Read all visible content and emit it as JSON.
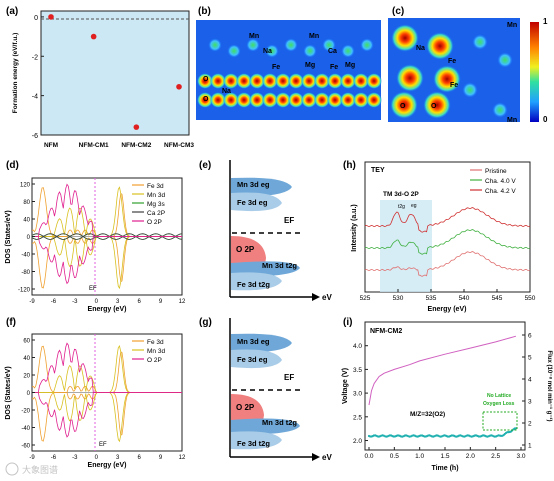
{
  "panels": {
    "a": {
      "label": "(a)",
      "ylabel": "Formation energy (eV/f.u.)",
      "yticks": [
        "0",
        "-2",
        "-4",
        "-6"
      ],
      "categories": [
        "NFM",
        "NFM-CM1",
        "NFM-CM2",
        "NFM-CM3"
      ]
    },
    "b": {
      "label": "(b)",
      "atoms": [
        "Mn",
        "Mn",
        "Na",
        "Ca",
        "Fe",
        "Mg",
        "Fe",
        "Mg",
        "O",
        "Na",
        "O"
      ]
    },
    "c": {
      "label": "(c)",
      "atoms": [
        "Mn",
        "Na",
        "Fe",
        "Fe",
        "O",
        "O",
        "Mn"
      ],
      "cbar": [
        "1",
        "0"
      ]
    },
    "d": {
      "label": "(d)",
      "ylabel": "DOS (States/eV)",
      "xlabel": "Energy (eV)",
      "ef": "EF",
      "yticks": [
        "120",
        "80",
        "40",
        "0",
        "-40",
        "-80",
        "-120"
      ],
      "xticks": [
        "-9",
        "-6",
        "-3",
        "0",
        "3",
        "6",
        "9",
        "12"
      ],
      "legend": [
        "Fe 3d",
        "Mn 3d",
        "Mg 3s",
        "Ca 2P",
        "O 2P"
      ]
    },
    "e": {
      "label": "(e)",
      "band1": "Mn 3d eg",
      "band2": "Fe 3d eg",
      "ef": "EF",
      "o2p": "O 2P",
      "band3": "Mn 3d t2g",
      "band4": "Fe 3d t2g",
      "axis": "eV"
    },
    "f": {
      "label": "(f)",
      "ylabel": "DOS (States/eV)",
      "xlabel": "Energy (eV)",
      "ef": "EF",
      "yticks": [
        "60",
        "40",
        "20",
        "0",
        "-20",
        "-40",
        "-60"
      ],
      "xticks": [
        "-9",
        "-6",
        "-3",
        "0",
        "3",
        "6",
        "9",
        "12"
      ],
      "legend": [
        "Fe 3d",
        "Mn 3d",
        "O 2P"
      ]
    },
    "g": {
      "label": "(g)",
      "band1": "Mn 3d eg",
      "band2": "Fe 3d eg",
      "ef": "EF",
      "o2p": "O 2P",
      "band3": "Mn 3d t2g",
      "band4": "Fe 3d t2g",
      "axis": "eV"
    },
    "h": {
      "label": "(h)",
      "tag": "TEY",
      "ylabel": "Intensity (a.u.)",
      "xlabel": "Energy (eV)",
      "xticks": [
        "525",
        "530",
        "535",
        "540",
        "545",
        "550"
      ],
      "region": "TM 3d-O 2P",
      "t2g": "t2g",
      "eg": "eg",
      "legend": [
        "Pristine",
        "Cha. 4.0 V",
        "Cha. 4.2 V"
      ]
    },
    "i": {
      "label": "(i)",
      "tag": "NFM-CM2",
      "ylabel": "Voltage (V)",
      "y2label": "Flux (10⁻⁸ mol min⁻¹ g⁻¹)",
      "xlabel": "Time (h)",
      "yticks": [
        "2.0",
        "2.5",
        "3.0",
        "3.5",
        "4.0"
      ],
      "y2ticks": [
        "1",
        "2",
        "3",
        "4",
        "5",
        "6"
      ],
      "xticks": [
        "0.0",
        "0.5",
        "1.0",
        "1.5",
        "2.0",
        "2.5",
        "3.0"
      ],
      "note1": "No Lattice",
      "note2": "Oxygen Loss",
      "mz": "M/Z=32(O2)"
    }
  },
  "watermark": "大象图谱",
  "colors": {
    "fe": "#f0a030",
    "mn": "#d8c020",
    "mg": "#30a030",
    "ca": "#404040",
    "o": "#e0208f",
    "dot": "#e02020",
    "bluefill": "#cce8f4",
    "ofill": "#f08080",
    "band": "#6fa8d8",
    "pristine": "#e07070",
    "cha40": "#40b040",
    "cha42": "#d03030",
    "volt": "#d060c0",
    "flux": "#20b0b0"
  },
  "chart_data": [
    {
      "panel": "a",
      "type": "scatter",
      "ylabel": "Formation energy (eV/f.u.)",
      "categories": [
        "NFM",
        "NFM-CM1",
        "NFM-CM2",
        "NFM-CM3"
      ],
      "values": [
        0,
        -1.0,
        -5.6,
        -3.55
      ],
      "ylim": [
        -6,
        0.3
      ]
    },
    {
      "panel": "i",
      "type": "line",
      "xlabel": "Time (h)",
      "ylabel": "Voltage (V)",
      "xlim": [
        0,
        3.0
      ],
      "ylim": [
        1.8,
        4.5
      ],
      "series": [
        {
          "x": [
            0,
            0.05,
            0.1,
            0.2,
            0.3,
            0.5,
            0.8,
            1.0,
            1.5,
            2.0,
            2.5,
            2.9
          ],
          "values": [
            2.75,
            3.05,
            3.2,
            3.35,
            3.42,
            3.5,
            3.6,
            3.68,
            3.82,
            3.95,
            4.08,
            4.2
          ]
        }
      ]
    }
  ]
}
